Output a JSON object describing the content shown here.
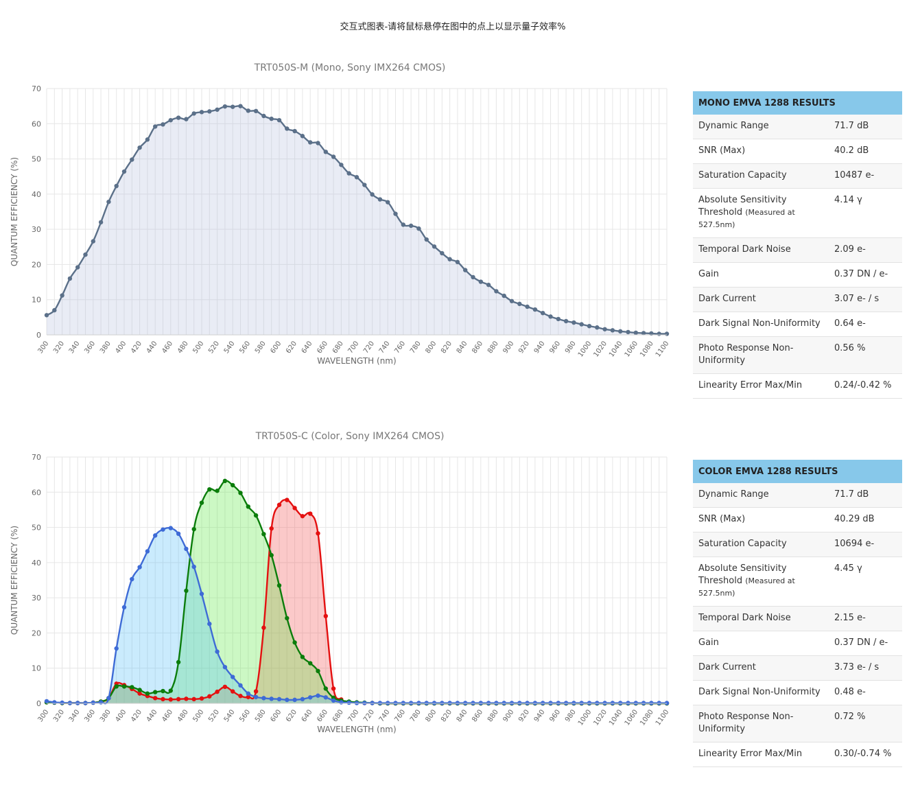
{
  "page_title": "交互式图表-请将鼠标悬停在图中的点上以显示量子效率%",
  "colors": {
    "mono": "#5b7089",
    "red": "#e41010",
    "green": "#0b7d0b",
    "blue": "#3e6bd6",
    "table_header": "#87c8ea"
  },
  "chart_data": [
    {
      "type": "area",
      "title": "TRT050S-M (Mono, Sony IMX264 CMOS)",
      "xlabel": "WAVELENGTH (nm)",
      "ylabel": "QUANTUM EFFICIENCY (%)",
      "xlim": [
        300,
        1100
      ],
      "ylim": [
        0,
        70
      ],
      "x_ticks": [
        300,
        320,
        340,
        360,
        380,
        400,
        420,
        440,
        460,
        480,
        500,
        520,
        540,
        560,
        580,
        600,
        620,
        640,
        660,
        680,
        700,
        720,
        740,
        760,
        780,
        800,
        820,
        840,
        860,
        880,
        900,
        920,
        940,
        960,
        980,
        1000,
        1020,
        1040,
        1060,
        1080,
        1100
      ],
      "y_ticks": [
        0,
        10,
        20,
        30,
        40,
        50,
        60,
        70
      ],
      "grid": true,
      "series": [
        {
          "x_start": 300,
          "x_step": 10,
          "values": [
            5.6,
            7,
            11.2,
            16,
            19.2,
            22.8,
            26.6,
            32,
            37.8,
            42.3,
            46.4,
            49.8,
            53.2,
            55.5,
            59.2,
            59.8,
            61,
            61.7,
            61.3,
            62.9,
            63.3,
            63.5,
            64,
            64.9,
            64.8,
            65,
            63.7,
            63.6,
            62.2,
            61.4,
            61,
            58.6,
            57.9,
            56.5,
            54.7,
            54.5,
            52,
            50.6,
            48.3,
            45.9,
            44.8,
            42.6,
            39.9,
            38.5,
            37.7,
            34.4,
            31.3,
            31,
            30.2,
            27.1,
            25.1,
            23.2,
            21.5,
            20.7,
            18.4,
            16.4,
            15.1,
            14.2,
            12.4,
            11.1,
            9.6,
            8.8,
            8,
            7.2,
            6.2,
            5.2,
            4.5,
            3.9,
            3.5,
            3,
            2.5,
            2.1,
            1.6,
            1.3,
            1,
            0.8,
            0.6,
            0.5,
            0.4,
            0.3,
            0.3
          ]
        }
      ]
    },
    {
      "type": "area",
      "title": "TRT050S-C (Color, Sony IMX264 CMOS)",
      "xlabel": "WAVELENGTH (nm)",
      "ylabel": "QUANTUM EFFICIENCY (%)",
      "xlim": [
        300,
        1100
      ],
      "ylim": [
        0,
        70
      ],
      "x_ticks": [
        300,
        320,
        340,
        360,
        380,
        400,
        420,
        440,
        460,
        480,
        500,
        520,
        540,
        560,
        580,
        600,
        620,
        640,
        660,
        680,
        700,
        720,
        740,
        760,
        780,
        800,
        820,
        840,
        860,
        880,
        900,
        920,
        940,
        960,
        980,
        1000,
        1020,
        1040,
        1060,
        1080,
        1100
      ],
      "y_ticks": [
        0,
        10,
        20,
        30,
        40,
        50,
        60,
        70
      ],
      "grid": true,
      "series": [
        {
          "color_key": "red",
          "x_start": 300,
          "x_step": 10,
          "values": [
            0.3,
            0.2,
            0.1,
            0.1,
            0.1,
            0.1,
            0.2,
            0.5,
            1.5,
            5.6,
            5.2,
            4.1,
            2.8,
            2.1,
            1.5,
            1.2,
            1.1,
            1.2,
            1.3,
            1.2,
            1.4,
            2,
            3.3,
            4.7,
            3.4,
            2.1,
            1.8,
            3.4,
            21.5,
            49.7,
            56.4,
            57.8,
            55.5,
            53.2,
            53.9,
            48.3,
            24.8,
            4.2,
            1.1,
            0.4,
            0.2,
            0.1,
            0.1,
            0,
            0,
            0,
            0,
            0,
            0,
            0,
            0,
            0,
            0,
            0,
            0,
            0,
            0,
            0,
            0,
            0,
            0,
            0,
            0,
            0,
            0,
            0,
            0,
            0,
            0,
            0,
            0,
            0,
            0,
            0,
            0,
            0,
            0,
            0,
            0,
            0,
            0
          ]
        },
        {
          "color_key": "green",
          "x_start": 300,
          "x_step": 10,
          "values": [
            0.3,
            0.2,
            0.1,
            0.1,
            0.1,
            0.1,
            0.2,
            0.5,
            1.5,
            4.8,
            4.8,
            4.6,
            3.8,
            2.8,
            3.2,
            3.5,
            3.6,
            11.7,
            32,
            49.5,
            57,
            60.8,
            60.4,
            63.2,
            62,
            59.8,
            55.9,
            53.4,
            48.1,
            42.1,
            33.5,
            24.2,
            17.3,
            13.2,
            11.4,
            9.2,
            4.2,
            1.6,
            0.8,
            0.5,
            0.3,
            0.2,
            0.1,
            0,
            0,
            0,
            0,
            0,
            0,
            0,
            0,
            0,
            0,
            0,
            0,
            0,
            0,
            0,
            0,
            0,
            0,
            0,
            0,
            0,
            0,
            0,
            0,
            0,
            0,
            0,
            0,
            0,
            0,
            0,
            0,
            0,
            0,
            0,
            0,
            0,
            0
          ]
        },
        {
          "color_key": "blue",
          "x_start": 300,
          "x_step": 10,
          "values": [
            0.6,
            0.3,
            0.2,
            0.1,
            0.1,
            0.1,
            0.2,
            0.3,
            1.5,
            15.6,
            27.3,
            35.3,
            38.7,
            43.2,
            47.7,
            49.4,
            49.8,
            48.2,
            43.9,
            38.8,
            31.1,
            22.6,
            14.7,
            10.3,
            7.5,
            5.1,
            2.8,
            1.8,
            1.5,
            1.3,
            1.2,
            1,
            1,
            1.2,
            1.7,
            2.2,
            1.7,
            0.8,
            0.3,
            0.2,
            0.1,
            0.1,
            0.1,
            0.1,
            0.1,
            0.1,
            0.1,
            0.1,
            0.1,
            0.1,
            0.1,
            0.1,
            0.1,
            0.1,
            0.1,
            0.1,
            0.1,
            0.1,
            0.1,
            0.1,
            0.1,
            0.1,
            0.1,
            0.1,
            0.1,
            0.1,
            0.1,
            0.1,
            0.1,
            0.1,
            0.1,
            0.1,
            0.1,
            0.1,
            0.1,
            0.1,
            0.1,
            0.1,
            0.1,
            0.1,
            0.1
          ]
        }
      ]
    }
  ],
  "mono_results": {
    "header": "MONO EMVA 1288 RESULTS",
    "rows": [
      {
        "label": "Dynamic Range",
        "value": "71.7 dB"
      },
      {
        "label": "SNR (Max)",
        "value": "40.2 dB"
      },
      {
        "label": "Saturation Capacity",
        "value": "10487 e-"
      },
      {
        "label": "Absolute Sensitivity Threshold",
        "note": "(Measured at 527.5nm)",
        "value": "4.14 γ"
      },
      {
        "label": "Temporal Dark Noise",
        "value": "2.09 e-"
      },
      {
        "label": "Gain",
        "value": "0.37 DN / e-"
      },
      {
        "label": "Dark Current",
        "value": "3.07 e- / s"
      },
      {
        "label": "Dark Signal Non-Uniformity",
        "value": "0.64 e-"
      },
      {
        "label": "Photo Response Non-Uniformity",
        "value": "0.56 %"
      },
      {
        "label": "Linearity Error Max/Min",
        "value": "0.24/-0.42 %"
      }
    ]
  },
  "color_results": {
    "header": "COLOR EMVA 1288 RESULTS",
    "rows": [
      {
        "label": "Dynamic Range",
        "value": "71.7 dB"
      },
      {
        "label": "SNR (Max)",
        "value": "40.29 dB"
      },
      {
        "label": "Saturation Capacity",
        "value": "10694 e-"
      },
      {
        "label": "Absolute Sensitivity Threshold",
        "note": "(Measured at 527.5nm)",
        "value": "4.45 γ"
      },
      {
        "label": "Temporal Dark Noise",
        "value": "2.15 e-"
      },
      {
        "label": "Gain",
        "value": "0.37 DN / e-"
      },
      {
        "label": "Dark Current",
        "value": "3.73 e- / s"
      },
      {
        "label": "Dark Signal Non-Uniformity",
        "value": "0.48 e-"
      },
      {
        "label": "Photo Response Non-Uniformity",
        "value": "0.72 %"
      },
      {
        "label": "Linearity Error Max/Min",
        "value": "0.30/-0.74 %"
      }
    ]
  }
}
